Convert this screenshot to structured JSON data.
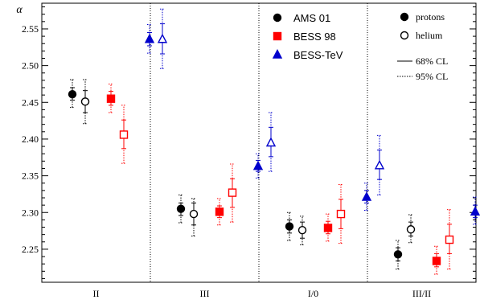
{
  "chart_data": {
    "type": "scatter",
    "title": "",
    "xlabel": "",
    "ylabel": "α",
    "ylim": [
      2.205,
      2.585
    ],
    "yticks": [
      2.25,
      2.3,
      2.35,
      2.4,
      2.45,
      2.5,
      2.55
    ],
    "grid": false,
    "categories": [
      "II",
      "III",
      "I/0",
      "III/II"
    ],
    "series": [
      {
        "name": "AMS 01",
        "color": "#000000",
        "marker": "circle",
        "protons": [
          {
            "y": 2.461,
            "err68": [
              2.453,
              2.47
            ],
            "err95": [
              2.443,
              2.481
            ]
          },
          {
            "y": 2.305,
            "err68": [
              2.296,
              2.313
            ],
            "err95": [
              2.286,
              2.324
            ]
          },
          {
            "y": 2.281,
            "err68": [
              2.272,
              2.29
            ],
            "err95": [
              2.262,
              2.3
            ]
          },
          {
            "y": 2.243,
            "err68": [
              2.234,
              2.252
            ],
            "err95": [
              2.223,
              2.262
            ]
          }
        ],
        "helium": [
          {
            "y": 2.451,
            "err68": [
              2.436,
              2.466
            ],
            "err95": [
              2.421,
              2.481
            ]
          },
          {
            "y": 2.298,
            "err68": [
              2.283,
              2.313
            ],
            "err95": [
              2.268,
              2.319
            ]
          },
          {
            "y": 2.276,
            "err68": [
              2.265,
              2.287
            ],
            "err95": [
              2.256,
              2.295
            ]
          },
          {
            "y": 2.277,
            "err68": [
              2.268,
              2.287
            ],
            "err95": [
              2.259,
              2.297
            ]
          }
        ]
      },
      {
        "name": "BESS 98",
        "color": "#ff0000",
        "marker": "square",
        "protons": [
          {
            "y": 2.455,
            "err68": [
              2.446,
              2.465
            ],
            "err95": [
              2.436,
              2.475
            ]
          },
          {
            "y": 2.301,
            "err68": [
              2.293,
              2.309
            ],
            "err95": [
              2.283,
              2.319
            ]
          },
          {
            "y": 2.279,
            "err68": [
              2.271,
              2.288
            ],
            "err95": [
              2.261,
              2.298
            ]
          },
          {
            "y": 2.234,
            "err68": [
              2.226,
              2.244
            ],
            "err95": [
              2.216,
              2.254
            ]
          }
        ],
        "helium": [
          {
            "y": 2.406,
            "err68": [
              2.387,
              2.426
            ],
            "err95": [
              2.367,
              2.446
            ]
          },
          {
            "y": 2.327,
            "err68": [
              2.307,
              2.346
            ],
            "err95": [
              2.287,
              2.366
            ]
          },
          {
            "y": 2.298,
            "err68": [
              2.278,
              2.318
            ],
            "err95": [
              2.258,
              2.338
            ]
          },
          {
            "y": 2.263,
            "err68": [
              2.244,
              2.284
            ],
            "err95": [
              2.223,
              2.304
            ]
          }
        ]
      },
      {
        "name": "BESS-TeV",
        "color": "#0000cc",
        "marker": "triangle",
        "protons": [
          {
            "y": 2.536,
            "err68": [
              2.527,
              2.545
            ],
            "err95": [
              2.517,
              2.556
            ]
          },
          {
            "y": 2.363,
            "err68": [
              2.356,
              2.371
            ],
            "err95": [
              2.347,
              2.38
            ]
          },
          {
            "y": 2.321,
            "err68": [
              2.313,
              2.33
            ],
            "err95": [
              2.303,
              2.34
            ]
          },
          {
            "y": 2.301,
            "err68": [
              2.293,
              2.31
            ],
            "err95": [
              2.284,
              2.321
            ]
          }
        ],
        "helium": [
          {
            "y": 2.536,
            "err68": [
              2.516,
              2.557
            ],
            "err95": [
              2.496,
              2.577
            ]
          },
          {
            "y": 2.395,
            "err68": [
              2.376,
              2.416
            ],
            "err95": [
              2.356,
              2.436
            ]
          },
          {
            "y": 2.364,
            "err68": [
              2.345,
              2.385
            ],
            "err95": [
              2.324,
              2.405
            ]
          },
          {
            "y": 2.362,
            "err68": [
              2.343,
              2.383
            ],
            "err95": [
              2.323,
              2.403
            ]
          }
        ]
      }
    ],
    "legend": {
      "placement": "top-right",
      "series_labels": [
        "AMS 01",
        "BESS 98",
        "BESS-TeV"
      ],
      "protons_label": "protons",
      "helium_label": "helium",
      "cl68_label": "68% CL",
      "cl95_label": "95% CL"
    }
  }
}
